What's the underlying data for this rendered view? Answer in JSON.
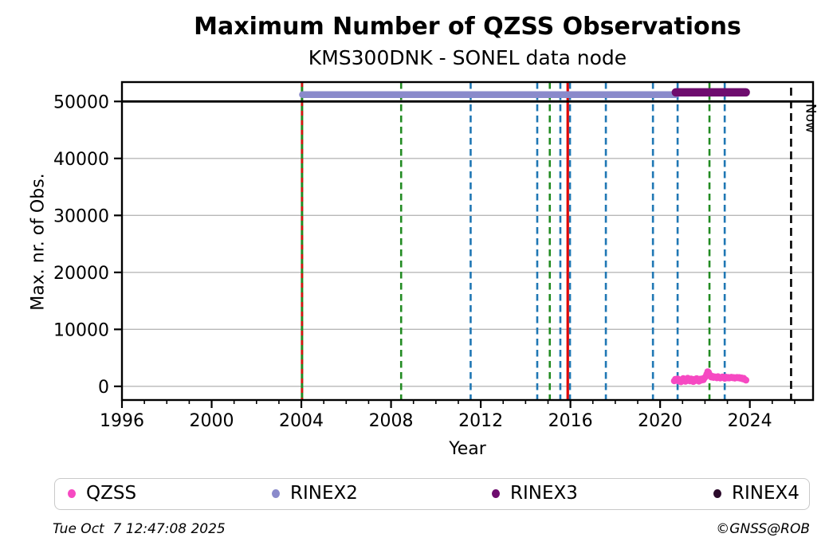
{
  "title": "Maximum Number of QZSS Observations",
  "subtitle": "KMS300DNK - SONEL data node",
  "footer": {
    "timestamp": "Tue Oct  7 12:47:08 2025",
    "credit": "©GNSS@ROB"
  },
  "legend": {
    "items": [
      {
        "label": "QZSS",
        "color": "#f649c2"
      },
      {
        "label": "RINEX2",
        "color": "#8a8acb"
      },
      {
        "label": "RINEX3",
        "color": "#6e0c6e"
      },
      {
        "label": "RINEX4",
        "color": "#2b0a2b"
      }
    ]
  },
  "chart_data": {
    "type": "scatter",
    "title": "Maximum Number of QZSS Observations",
    "subtitle": "KMS300DNK - SONEL data node",
    "xlabel": "Year",
    "ylabel": "Max. nr. of Obs.",
    "xlim": [
      1996,
      2026.82
    ],
    "ylim": [
      -2400,
      53400
    ],
    "x_major_ticks": [
      1996,
      2000,
      2004,
      2008,
      2012,
      2016,
      2020,
      2024
    ],
    "x_minor_tick_step": 1,
    "y_ticks": [
      0,
      10000,
      20000,
      30000,
      40000,
      50000
    ],
    "grid": "horizontal",
    "grid_color": "#b8b8b8",
    "hlines": [
      {
        "y": 50000,
        "color": "#000000",
        "style": "solid",
        "width": 2.8
      }
    ],
    "vlines": [
      {
        "x": 2004.03,
        "color": "#228B22",
        "style": "solid",
        "width": 3.0,
        "note": "green event line"
      },
      {
        "x": 2004.03,
        "color": "#dd1111",
        "style": "dashed",
        "width": 2.6,
        "note": "red dashed overlay"
      },
      {
        "x": 2008.45,
        "color": "#228B22",
        "style": "dashed",
        "width": 2.6
      },
      {
        "x": 2011.55,
        "color": "#1f77b4",
        "style": "dashed",
        "width": 2.6
      },
      {
        "x": 2014.52,
        "color": "#1f77b4",
        "style": "dashed",
        "width": 2.6
      },
      {
        "x": 2015.08,
        "color": "#228B22",
        "style": "dashed",
        "width": 2.6
      },
      {
        "x": 2015.55,
        "color": "#1f77b4",
        "style": "dashed",
        "width": 2.6
      },
      {
        "x": 2015.88,
        "color": "#e00000",
        "style": "solid",
        "width": 3.2
      },
      {
        "x": 2015.98,
        "color": "#1f77b4",
        "style": "dashed",
        "width": 2.6
      },
      {
        "x": 2017.58,
        "color": "#1f77b4",
        "style": "dashed",
        "width": 2.6
      },
      {
        "x": 2019.68,
        "color": "#1f77b4",
        "style": "dashed",
        "width": 2.6
      },
      {
        "x": 2020.78,
        "color": "#1f77b4",
        "style": "dashed",
        "width": 2.6
      },
      {
        "x": 2022.2,
        "color": "#228B22",
        "style": "dashed",
        "width": 2.6
      },
      {
        "x": 2022.88,
        "color": "#1f77b4",
        "style": "dashed",
        "width": 2.6
      }
    ],
    "now_marker": {
      "x": 2025.84,
      "label": "Now",
      "color": "#000000",
      "style": "dashed",
      "width": 2.6
    },
    "series": [
      {
        "name": "QZSS",
        "type": "scatter",
        "color": "#f649c2",
        "marker_radius": 4.2,
        "points": [
          [
            2020.63,
            950
          ],
          [
            2020.68,
            1250
          ],
          [
            2020.73,
            1080
          ],
          [
            2020.78,
            1320
          ],
          [
            2020.83,
            900
          ],
          [
            2020.88,
            1150
          ],
          [
            2020.93,
            780
          ],
          [
            2020.98,
            1230
          ],
          [
            2021.03,
            1380
          ],
          [
            2021.08,
            1120
          ],
          [
            2021.13,
            870
          ],
          [
            2021.18,
            1260
          ],
          [
            2021.23,
            1430
          ],
          [
            2021.28,
            1180
          ],
          [
            2021.33,
            940
          ],
          [
            2021.38,
            1310
          ],
          [
            2021.43,
            1090
          ],
          [
            2021.48,
            820
          ],
          [
            2021.53,
            1240
          ],
          [
            2021.58,
            1010
          ],
          [
            2021.63,
            1360
          ],
          [
            2021.68,
            1170
          ],
          [
            2021.73,
            880
          ],
          [
            2021.78,
            1280
          ],
          [
            2021.83,
            1060
          ],
          [
            2021.88,
            1330
          ],
          [
            2021.93,
            1140
          ],
          [
            2021.98,
            1480
          ],
          [
            2022.03,
            1720
          ],
          [
            2022.08,
            2150
          ],
          [
            2022.12,
            2580
          ],
          [
            2022.16,
            2460
          ],
          [
            2022.2,
            2120
          ],
          [
            2022.24,
            1840
          ],
          [
            2022.28,
            1620
          ],
          [
            2022.33,
            1760
          ],
          [
            2022.38,
            1540
          ],
          [
            2022.43,
            1680
          ],
          [
            2022.48,
            1590
          ],
          [
            2022.53,
            1470
          ],
          [
            2022.58,
            1710
          ],
          [
            2022.63,
            1580
          ],
          [
            2022.68,
            1440
          ],
          [
            2022.73,
            1560
          ],
          [
            2022.78,
            1660
          ],
          [
            2022.83,
            1510
          ],
          [
            2022.88,
            1390
          ],
          [
            2022.93,
            1620
          ],
          [
            2022.98,
            1480
          ],
          [
            2023.03,
            1570
          ],
          [
            2023.08,
            1450
          ],
          [
            2023.13,
            1540
          ],
          [
            2023.18,
            1610
          ],
          [
            2023.23,
            1490
          ],
          [
            2023.28,
            1560
          ],
          [
            2023.33,
            1430
          ],
          [
            2023.38,
            1520
          ],
          [
            2023.43,
            1580
          ],
          [
            2023.48,
            1470
          ],
          [
            2023.53,
            1550
          ],
          [
            2023.58,
            1400
          ],
          [
            2023.63,
            1480
          ],
          [
            2023.68,
            1300
          ],
          [
            2023.73,
            1420
          ],
          [
            2023.78,
            1180
          ],
          [
            2023.83,
            1080
          ]
        ]
      },
      {
        "name": "RINEX2",
        "type": "segment",
        "color": "#8a8acb",
        "y": 51200,
        "x_start": 2004.05,
        "x_end": 2020.7,
        "line_width": 8.5
      },
      {
        "name": "RINEX3",
        "type": "segment",
        "color": "#6e0c6e",
        "y": 51600,
        "x_start": 2020.7,
        "x_end": 2023.82,
        "line_width": 10.5
      },
      {
        "name": "RINEX4",
        "type": "scatter",
        "color": "#2b0a2b",
        "points": []
      }
    ]
  }
}
